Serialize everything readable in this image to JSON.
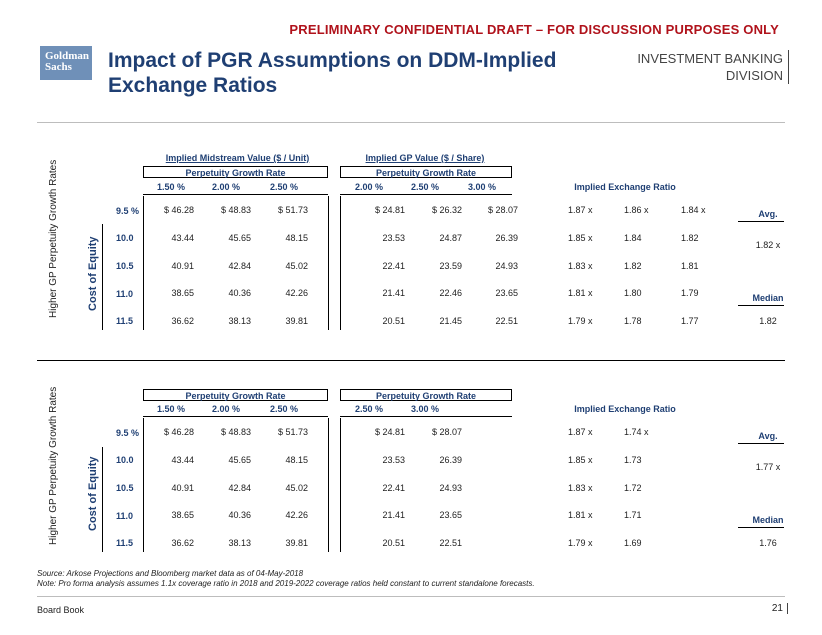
{
  "header": {
    "banner": "PRELIMINARY CONFIDENTIAL DRAFT – FOR DISCUSSION PURPOSES ONLY",
    "logo_line1": "Goldman",
    "logo_line2": "Sachs",
    "title": "Impact of PGR Assumptions on DDM-Implied Exchange Ratios",
    "division_line1": "INVESTMENT BANKING",
    "division_line2": "DIVISION"
  },
  "table1": {
    "side_label": "Higher GP Perpetuity Growth Rates",
    "coe_label": "Cost of Equity",
    "mid_header": "Implied Midstream Value ($ / Unit)",
    "gp_header": "Implied GP Value ($ / Share)",
    "mid_pgr_label": "Perpetuity Growth Rate",
    "gp_pgr_label": "Perpetuity Growth Rate",
    "mid_rates": [
      "1.50 %",
      "2.00 %",
      "2.50 %"
    ],
    "gp_rates": [
      "2.00 %",
      "2.50 %",
      "3.00 %"
    ],
    "ier_header": "Implied Exchange Ratio",
    "rows": [
      {
        "coe": "9.5 %",
        "mid": [
          "$ 46.28",
          "$ 48.83",
          "$ 51.73"
        ],
        "gp": [
          "$ 24.81",
          "$ 26.32",
          "$ 28.07"
        ],
        "ratios": [
          "1.87 x",
          "1.86 x",
          "1.84 x"
        ]
      },
      {
        "coe": "10.0",
        "mid": [
          "43.44",
          "45.65",
          "48.15"
        ],
        "gp": [
          "23.53",
          "24.87",
          "26.39"
        ],
        "ratios": [
          "1.85 x",
          "1.84",
          "1.82"
        ]
      },
      {
        "coe": "10.5",
        "mid": [
          "40.91",
          "42.84",
          "45.02"
        ],
        "gp": [
          "22.41",
          "23.59",
          "24.93"
        ],
        "ratios": [
          "1.83 x",
          "1.82",
          "1.81"
        ]
      },
      {
        "coe": "11.0",
        "mid": [
          "38.65",
          "40.36",
          "42.26"
        ],
        "gp": [
          "21.41",
          "22.46",
          "23.65"
        ],
        "ratios": [
          "1.81 x",
          "1.80",
          "1.79"
        ]
      },
      {
        "coe": "11.5",
        "mid": [
          "36.62",
          "38.13",
          "39.81"
        ],
        "gp": [
          "20.51",
          "21.45",
          "22.51"
        ],
        "ratios": [
          "1.79 x",
          "1.78",
          "1.77"
        ]
      }
    ],
    "avg_label": "Avg.",
    "avg_value": "1.82 x",
    "median_label": "Median",
    "median_value": "1.82"
  },
  "table2": {
    "side_label": "Higher GP Perpetuity Growth Rates",
    "coe_label": "Cost of Equity",
    "mid_pgr_label": "Perpetuity Growth Rate",
    "gp_pgr_label": "Perpetuity Growth Rate",
    "mid_rates": [
      "1.50 %",
      "2.00 %",
      "2.50 %"
    ],
    "gp_rates": [
      "2.50 %",
      "3.00 %"
    ],
    "ier_header": "Implied Exchange Ratio",
    "rows": [
      {
        "coe": "9.5 %",
        "mid": [
          "$ 46.28",
          "$ 48.83",
          "$ 51.73"
        ],
        "gp": [
          "$ 24.81",
          "$ 28.07"
        ],
        "ratios": [
          "1.87 x",
          "1.74 x"
        ]
      },
      {
        "coe": "10.0",
        "mid": [
          "43.44",
          "45.65",
          "48.15"
        ],
        "gp": [
          "23.53",
          "26.39"
        ],
        "ratios": [
          "1.85 x",
          "1.73"
        ]
      },
      {
        "coe": "10.5",
        "mid": [
          "40.91",
          "42.84",
          "45.02"
        ],
        "gp": [
          "22.41",
          "24.93"
        ],
        "ratios": [
          "1.83 x",
          "1.72"
        ]
      },
      {
        "coe": "11.0",
        "mid": [
          "38.65",
          "40.36",
          "42.26"
        ],
        "gp": [
          "21.41",
          "23.65"
        ],
        "ratios": [
          "1.81 x",
          "1.71"
        ]
      },
      {
        "coe": "11.5",
        "mid": [
          "36.62",
          "38.13",
          "39.81"
        ],
        "gp": [
          "20.51",
          "22.51"
        ],
        "ratios": [
          "1.79 x",
          "1.69"
        ]
      }
    ],
    "avg_label": "Avg.",
    "avg_value": "1.77 x",
    "median_label": "Median",
    "median_value": "1.76"
  },
  "notes": {
    "source": "Source: Arkose Projections and Bloomberg market data as of 04-May-2018",
    "note": "Note: Pro forma analysis assumes 1.1x coverage ratio in 2018 and 2019-2022 coverage ratios held constant to current standalone forecasts."
  },
  "footer": {
    "left": "Board Book",
    "page": "21"
  }
}
